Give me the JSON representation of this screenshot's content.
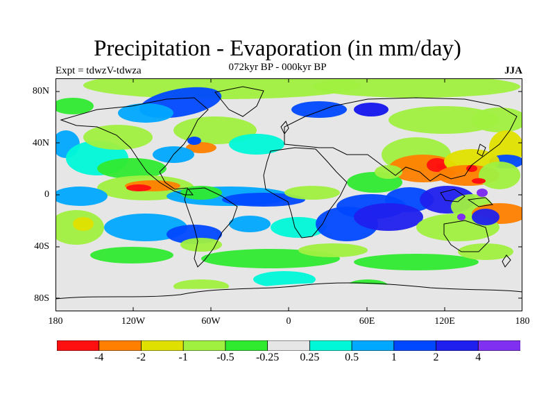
{
  "title": "Precipitation - Evaporation (in mm/day)",
  "subtitle": "072kyr BP - 000kyr BP",
  "left_label": "Expt = tdwzV-tdwza",
  "right_label": "JJA",
  "axes": {
    "lat_labels": [
      "80N",
      "40N",
      "0",
      "40S",
      "80S"
    ],
    "lon_labels": [
      "180",
      "120W",
      "60W",
      "0",
      "60E",
      "120E",
      "180"
    ]
  },
  "colorbar": {
    "colors": [
      "#ff1010",
      "#ff8000",
      "#e0e000",
      "#a0f040",
      "#30ea30",
      "#e6e6e6",
      "#00f8d8",
      "#00a8ff",
      "#0048ff",
      "#2020ee",
      "#8030f0"
    ],
    "labels": [
      "-4",
      "-2",
      "-1",
      "-0.5",
      "-0.25",
      "0.25",
      "0.5",
      "1",
      "2",
      "4"
    ]
  }
}
